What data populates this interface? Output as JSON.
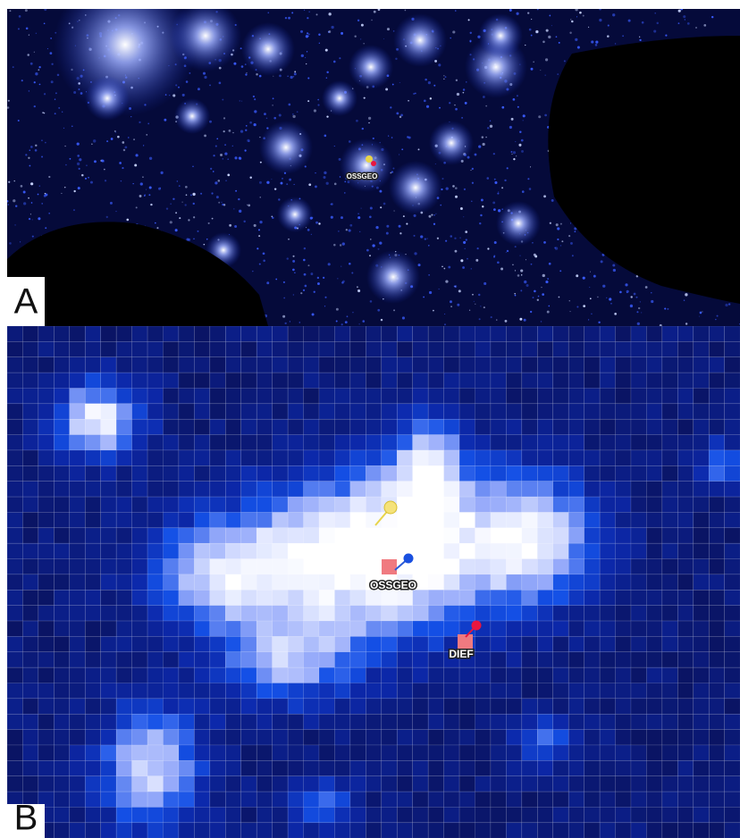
{
  "panel_a": {
    "label": "A",
    "marker_label": "OSSGEO"
  },
  "panel_b": {
    "label": "B",
    "markers": [
      {
        "label": "OSSGEO"
      },
      {
        "label": "DIEF"
      }
    ]
  }
}
